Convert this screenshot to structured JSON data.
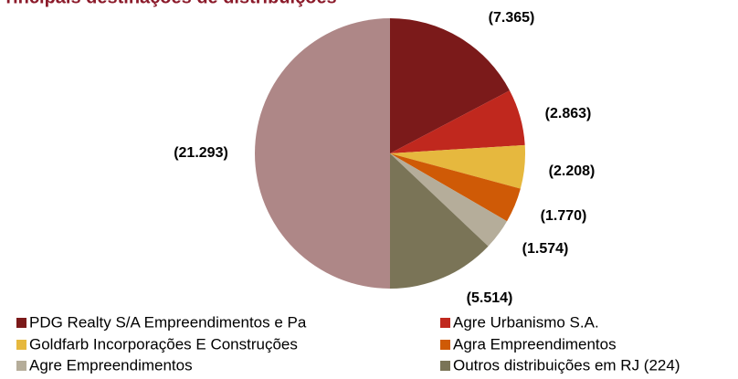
{
  "chart_data": {
    "type": "pie",
    "title": "Principais destinações de distribuições",
    "categories": [
      "PDG Realty S/A Empreendimentos e Pa",
      "Agre Urbanismo S.A.",
      "Goldfarb Incorporações E Construções",
      "Agra Empreendimentos",
      "Agre Empreendimentos",
      "Outros distribuições em RJ (224)",
      null
    ],
    "values": [
      7365,
      2863,
      2208,
      1770,
      1574,
      5514,
      21293
    ],
    "value_labels": [
      "(7.365)",
      "(2.863)",
      "(2.208)",
      "(1.770)",
      "(1.574)",
      "(5.514)",
      "(21.293)"
    ],
    "colors": [
      "#7b1a1a",
      "#c0281e",
      "#e6b83e",
      "#cf5a06",
      "#b5ad9a",
      "#7a7457",
      "#ae8787"
    ],
    "legend": "bottom"
  }
}
